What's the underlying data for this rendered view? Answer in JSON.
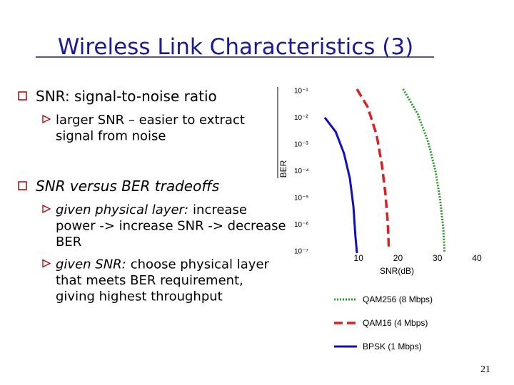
{
  "title": "Wireless Link Characteristics (3)",
  "bullets": [
    {
      "text": "SNR: signal-to-noise ratio",
      "style": "normal",
      "subitems": [
        {
          "lines": [
            "larger SNR – easier to extract",
            "signal from noise"
          ]
        }
      ]
    },
    {
      "text": "SNR versus BER tradeoffs",
      "style": "italic",
      "subitems": [
        {
          "lead": "given physical layer:",
          "lines": [
            "increase",
            "power -> increase SNR -> decrease",
            "BER"
          ]
        },
        {
          "lead": "given SNR:",
          "lines": [
            "choose physical layer",
            "that meets BER requirement,",
            "giving highest throughput"
          ]
        }
      ]
    }
  ],
  "chart_data": {
    "type": "line",
    "x_label": "SNR(dB)",
    "y_label": "BER",
    "log_y": true,
    "xlim": [
      0,
      42
    ],
    "ylim": [
      8e-08,
      0.15
    ],
    "xticks": [
      10,
      20,
      30,
      40
    ],
    "yticks": [
      {
        "value": 0.1,
        "label": "10⁻¹"
      },
      {
        "value": 0.01,
        "label": "10⁻²"
      },
      {
        "value": 0.001,
        "label": "10⁻³"
      },
      {
        "value": 0.0001,
        "label": "10⁻⁴"
      },
      {
        "value": 1e-05,
        "label": "10⁻⁵"
      },
      {
        "value": 1e-06,
        "label": "10⁻⁶"
      },
      {
        "value": 1e-07,
        "label": "10⁻⁷"
      }
    ],
    "series": [
      {
        "name": "QAM256 (8 Mbps)",
        "color": "#2a9a2a",
        "dash": "dotted",
        "x": [
          21.3,
          25,
          27.7,
          29.5,
          30.7,
          31.5,
          31.8
        ],
        "values": [
          0.11,
          0.013,
          0.0011,
          9.5e-05,
          7.8e-06,
          6.6e-07,
          9e-08
        ]
      },
      {
        "name": "QAM16 (4 Mbps)",
        "color": "#e02020",
        "dash": "dashed",
        "x": [
          9.6,
          12.3,
          14.6,
          15.9,
          16.8,
          17.4,
          17.7
        ],
        "values": [
          0.11,
          0.024,
          0.0021,
          0.00017,
          1.4e-05,
          1.2e-06,
          1e-07
        ]
      },
      {
        "name": "BPSK (1 Mbps)",
        "color": "#1010c0",
        "dash": "solid",
        "x": [
          1.45,
          4.2,
          6.3,
          7.8,
          8.7,
          9.2,
          9.6
        ],
        "values": [
          0.0095,
          0.0028,
          0.00044,
          5e-05,
          4.3e-06,
          3.6e-07,
          8e-08
        ]
      }
    ]
  },
  "page_number": "21"
}
